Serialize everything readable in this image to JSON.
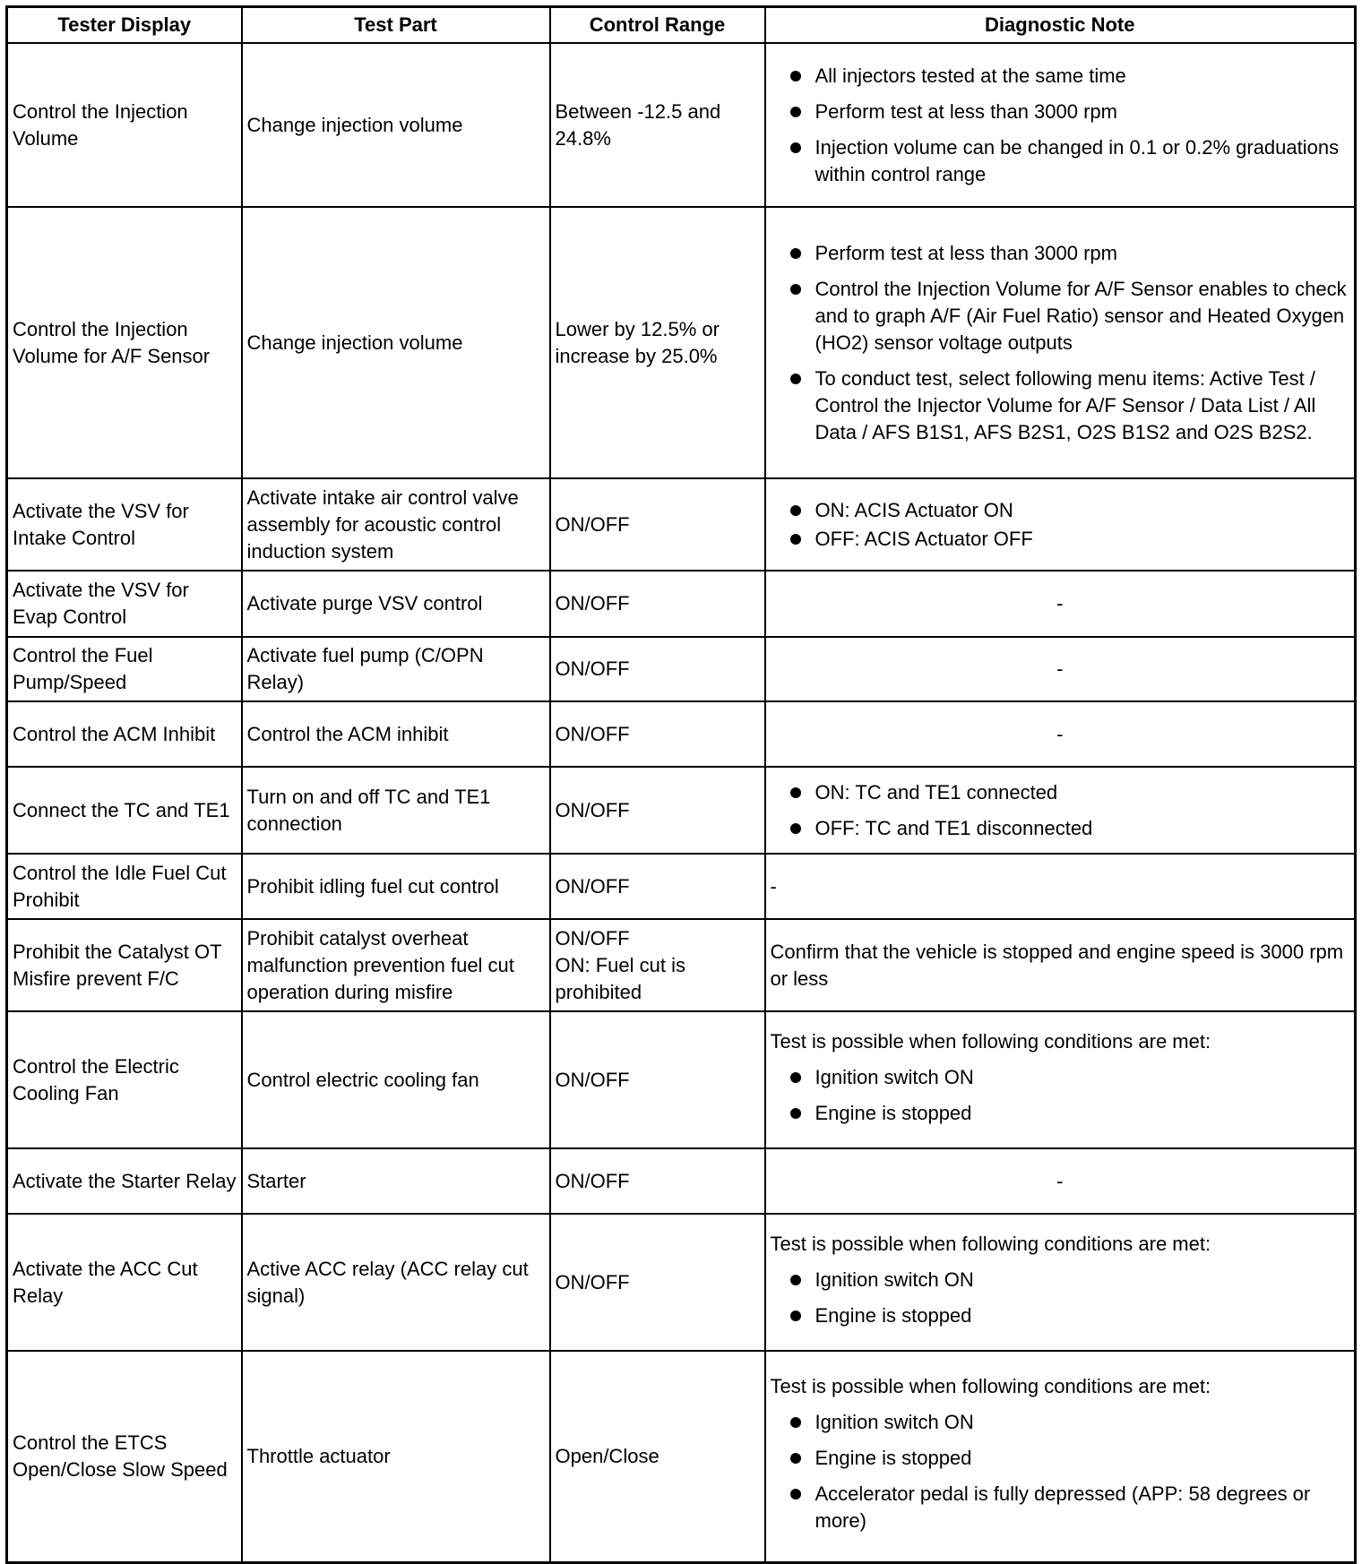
{
  "headers": [
    "Tester Display",
    "Test Part",
    "Control Range",
    "Diagnostic Note"
  ],
  "rows": [
    {
      "display": "Control the Injection Volume",
      "part": "Change injection volume",
      "range": "Between -12.5 and 24.8%",
      "note_intro": "",
      "bullets": [
        "All injectors tested at the same time",
        "Perform test at less than 3000 rpm",
        "Injection volume can be changed in 0.1 or 0.2% graduations within control range"
      ],
      "note_text": ""
    },
    {
      "display": "Control the Injection Volume for A/F Sensor",
      "part": "Change injection volume",
      "range": "Lower by 12.5% or increase by 25.0%",
      "note_intro": "",
      "bullets": [
        "Perform test at less than 3000 rpm",
        "Control the Injection Volume for A/F Sensor enables to check and to graph A/F (Air Fuel Ratio) sensor and Heated Oxygen (HO2) sensor voltage outputs",
        "To conduct test, select following menu items: Active Test / Control the Injector Volume for A/F Sensor / Data List / All Data / AFS B1S1, AFS B2S1, O2S B1S2 and O2S B2S2."
      ],
      "note_text": ""
    },
    {
      "display": "Activate the VSV for Intake Control",
      "part": "Activate intake air control valve assembly for acoustic control induction system",
      "range": "ON/OFF",
      "note_intro": "",
      "bullets": [
        "ON: ACIS Actuator ON",
        "OFF: ACIS Actuator OFF"
      ],
      "note_text": ""
    },
    {
      "display": "Activate the VSV for Evap Control",
      "part": "Activate purge VSV control",
      "range": "ON/OFF",
      "note_intro": "",
      "bullets": [],
      "note_text": "-"
    },
    {
      "display": "Control the Fuel Pump/Speed",
      "part": "Activate fuel pump (C/OPN Relay)",
      "range": "ON/OFF",
      "note_intro": "",
      "bullets": [],
      "note_text": "-"
    },
    {
      "display": "Control the ACM Inhibit",
      "part": "Control the ACM inhibit",
      "range": "ON/OFF",
      "note_intro": "",
      "bullets": [],
      "note_text": "-"
    },
    {
      "display": "Connect the TC and TE1",
      "part": "Turn on and off TC and TE1 connection",
      "range": "ON/OFF",
      "note_intro": "",
      "bullets": [
        "ON: TC and TE1 connected",
        "OFF: TC and TE1 disconnected"
      ],
      "note_text": ""
    },
    {
      "display": "Control the Idle Fuel Cut Prohibit",
      "part": "Prohibit idling fuel cut control",
      "range": "ON/OFF",
      "note_intro": "",
      "bullets": [],
      "note_text": "-"
    },
    {
      "display": "Prohibit the Catalyst OT Misfire prevent F/C",
      "part": "Prohibit catalyst overheat malfunction prevention fuel cut operation during misfire",
      "range": "ON/OFF\nON: Fuel cut is prohibited",
      "note_intro": "",
      "bullets": [],
      "note_text": "Confirm that the vehicle is stopped and engine speed is 3000 rpm or less"
    },
    {
      "display": "Control the Electric Cooling Fan",
      "part": "Control electric cooling fan",
      "range": "ON/OFF",
      "note_intro": "Test is possible when following conditions are met:",
      "bullets": [
        "Ignition switch ON",
        "Engine is stopped"
      ],
      "note_text": ""
    },
    {
      "display": "Activate the Starter Relay",
      "part": "Starter",
      "range": "ON/OFF",
      "note_intro": "",
      "bullets": [],
      "note_text": "-"
    },
    {
      "display": "Activate the ACC Cut Relay",
      "part": "Active ACC relay (ACC relay cut signal)",
      "range": "ON/OFF",
      "note_intro": "Test is possible when following conditions are met:",
      "bullets": [
        "Ignition switch ON",
        "Engine is stopped"
      ],
      "note_text": ""
    },
    {
      "display": "Control the ETCS Open/Close Slow Speed",
      "part": "Throttle actuator",
      "range": "Open/Close",
      "note_intro": "Test is possible when following conditions are met:",
      "bullets": [
        "Ignition switch ON",
        "Engine is stopped",
        "Accelerator pedal is fully depressed (APP: 58 degrees or more)"
      ],
      "note_text": ""
    }
  ]
}
